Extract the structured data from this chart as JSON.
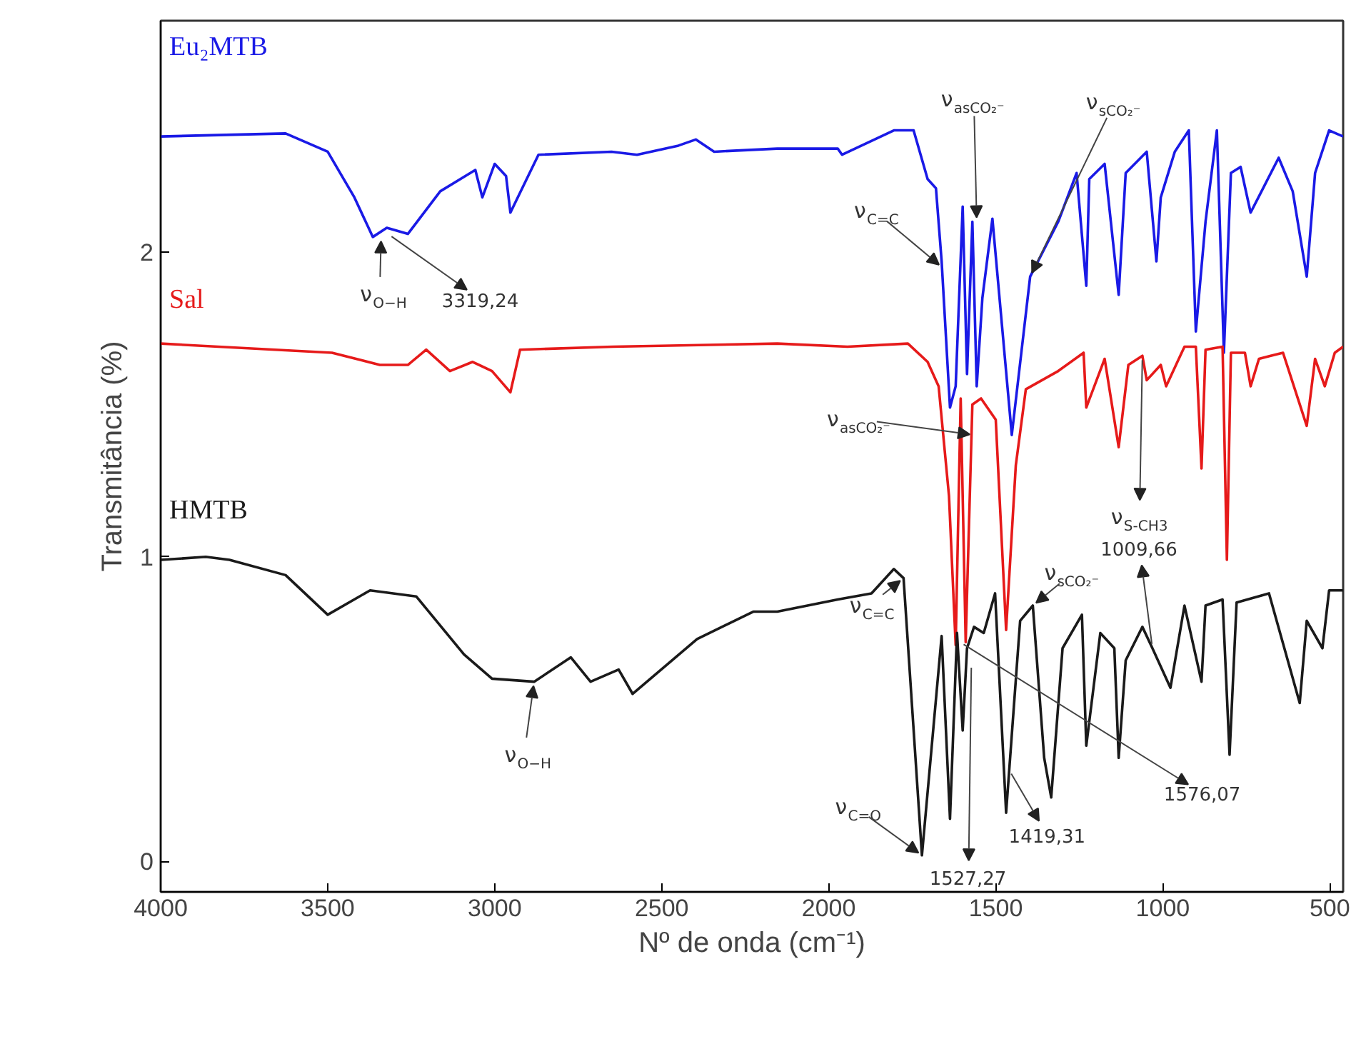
{
  "chart_data": {
    "type": "line",
    "xlabel": "Nº de onda (cm⁻¹)",
    "ylabel": "Transmitância (%)",
    "xlim": [
      4000,
      460
    ],
    "ylim": [
      -0.1,
      2.76
    ],
    "xticks": [
      4000,
      3500,
      3000,
      2500,
      2000,
      1500,
      1000,
      500
    ],
    "yticks": [
      0,
      1,
      2
    ],
    "series": [
      {
        "name": "Eu₂MTB",
        "color": "#1a1ae6",
        "x": [
          4000,
          3626,
          3500,
          3420,
          3365,
          3323,
          3260,
          3163,
          3058,
          3037,
          3000,
          2966,
          2953,
          2869,
          2650,
          2574,
          2450,
          2398,
          2343,
          2154,
          1973,
          1960,
          1805,
          1746,
          1704,
          1679,
          1662,
          1637,
          1620,
          1599,
          1586,
          1570,
          1557,
          1540,
          1510,
          1452,
          1397,
          1313,
          1258,
          1229,
          1220,
          1174,
          1132,
          1111,
          1048,
          1019,
          1006,
          964,
          922,
          901,
          872,
          838,
          817,
          796,
          767,
          737,
          695,
          653,
          611,
          569,
          544,
          502,
          460
        ],
        "values": [
          2.38,
          2.39,
          2.33,
          2.18,
          2.05,
          2.08,
          2.06,
          2.2,
          2.27,
          2.18,
          2.29,
          2.25,
          2.13,
          2.32,
          2.33,
          2.32,
          2.35,
          2.37,
          2.33,
          2.34,
          2.34,
          2.32,
          2.4,
          2.4,
          2.24,
          2.21,
          1.97,
          1.49,
          1.56,
          2.15,
          1.6,
          2.1,
          1.56,
          1.85,
          2.11,
          1.4,
          1.92,
          2.1,
          2.26,
          1.89,
          2.24,
          2.29,
          1.86,
          2.26,
          2.33,
          1.97,
          2.18,
          2.33,
          2.4,
          1.74,
          2.1,
          2.4,
          1.67,
          2.26,
          2.28,
          2.13,
          2.22,
          2.31,
          2.2,
          1.92,
          2.26,
          2.4,
          2.38
        ]
      },
      {
        "name": "Sal",
        "color": "#e61a1a",
        "x": [
          4000,
          3487,
          3344,
          3260,
          3205,
          3134,
          3066,
          3008,
          2953,
          2924,
          2646,
          2154,
          1944,
          1763,
          1704,
          1671,
          1640,
          1620,
          1605,
          1590,
          1570,
          1544,
          1500,
          1469,
          1440,
          1410,
          1313,
          1237,
          1229,
          1174,
          1132,
          1103,
          1061,
          1048,
          1006,
          990,
          935,
          901,
          884,
          872,
          821,
          808,
          796,
          754,
          737,
          712,
          640,
          569,
          544,
          515,
          485,
          460
        ],
        "values": [
          1.7,
          1.67,
          1.63,
          1.63,
          1.68,
          1.61,
          1.64,
          1.61,
          1.54,
          1.68,
          1.69,
          1.7,
          1.69,
          1.7,
          1.64,
          1.56,
          1.2,
          0.71,
          1.52,
          0.72,
          1.5,
          1.52,
          1.45,
          0.76,
          1.3,
          1.55,
          1.61,
          1.67,
          1.49,
          1.65,
          1.36,
          1.63,
          1.66,
          1.58,
          1.63,
          1.56,
          1.69,
          1.69,
          1.29,
          1.68,
          1.69,
          0.99,
          1.67,
          1.67,
          1.56,
          1.65,
          1.67,
          1.43,
          1.65,
          1.56,
          1.67,
          1.69
        ]
      },
      {
        "name": "HMTB",
        "color": "#1a1a1a",
        "x": [
          4000,
          3865,
          3794,
          3626,
          3500,
          3373,
          3235,
          3092,
          3008,
          2882,
          2772,
          2713,
          2629,
          2587,
          2394,
          2226,
          2154,
          1973,
          1872,
          1805,
          1776,
          1721,
          1662,
          1637,
          1616,
          1599,
          1586,
          1565,
          1536,
          1502,
          1469,
          1427,
          1389,
          1355,
          1334,
          1300,
          1242,
          1229,
          1187,
          1145,
          1132,
          1111,
          1061,
          1031,
          977,
          935,
          884,
          872,
          821,
          800,
          779,
          682,
          590,
          569,
          522,
          502,
          460
        ],
        "values": [
          0.99,
          1.0,
          0.99,
          0.94,
          0.81,
          0.89,
          0.87,
          0.68,
          0.6,
          0.59,
          0.67,
          0.59,
          0.63,
          0.55,
          0.73,
          0.82,
          0.82,
          0.86,
          0.88,
          0.96,
          0.93,
          0.02,
          0.74,
          0.14,
          0.75,
          0.43,
          0.7,
          0.77,
          0.75,
          0.88,
          0.16,
          0.79,
          0.84,
          0.34,
          0.21,
          0.7,
          0.81,
          0.38,
          0.75,
          0.7,
          0.34,
          0.66,
          0.77,
          0.7,
          0.57,
          0.84,
          0.59,
          0.84,
          0.86,
          0.35,
          0.85,
          0.88,
          0.52,
          0.79,
          0.7,
          0.89,
          0.89
        ]
      }
    ],
    "annotations": [
      {
        "text": "ν$_{O−H}$",
        "x": 3340,
        "y": 2.05
      },
      {
        "text": "3319,24",
        "x": 3319.24,
        "y": 2.06
      },
      {
        "text": "ν$_{O−H}$",
        "x": 2882,
        "y": 0.59
      },
      {
        "text": "ν$_{C=C}$",
        "x": 1660,
        "y": 1.95
      },
      {
        "text": "ν$_{asCO₂⁻}$",
        "x": 1557,
        "y": 2.1
      },
      {
        "text": "ν$_{sCO₂⁻}$",
        "x": 1397,
        "y": 1.92
      },
      {
        "text": "ν$_{asCO₂⁻}$",
        "x": 1565,
        "y": 1.4
      },
      {
        "text": "ν$_{C=C}$",
        "x": 1776,
        "y": 0.93
      },
      {
        "text": "ν$_{sCO₂⁻}$",
        "x": 1389,
        "y": 0.84
      },
      {
        "text": "ν$_{S-CH3}$",
        "x": 1061,
        "y": 1.66
      },
      {
        "text": "1009,66",
        "x": 1031,
        "y": 0.7
      },
      {
        "text": "ν$_{C=O}$",
        "x": 1721,
        "y": 0.02
      },
      {
        "text": "1527,27",
        "x": 1573,
        "y": 0.65
      },
      {
        "text": "1419,31",
        "x": 1460,
        "y": 0.3
      },
      {
        "text": "1576,07",
        "x": 1607,
        "y": 0.72
      }
    ]
  }
}
